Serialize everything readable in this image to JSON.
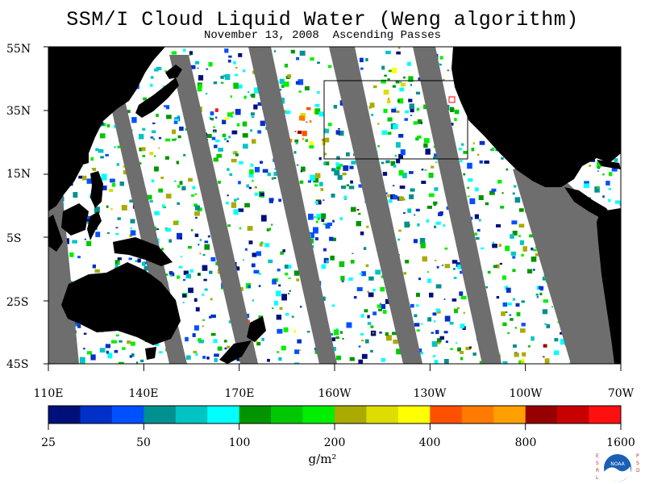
{
  "title": "SSM/I Cloud Liquid Water (Weng algorithm)",
  "subtitle": "November 13, 2008  Ascending Passes",
  "lat_labels": [
    "55N",
    "35N",
    "15N",
    "5S",
    "25S",
    "45S"
  ],
  "lon_labels": [
    "110E",
    "140E",
    "170E",
    "160W",
    "130W",
    "100W",
    "70W"
  ],
  "colorbar": {
    "labels": [
      "25",
      "50",
      "100",
      "200",
      "400",
      "800",
      "1600"
    ],
    "units": "g/m²",
    "colors": [
      "#00107a",
      "#0030c8",
      "#0050ff",
      "#009090",
      "#00c4c4",
      "#00ffff",
      "#009400",
      "#00c800",
      "#00ee00",
      "#aaaa00",
      "#dddd00",
      "#ffff00",
      "#ff5000",
      "#ff7a00",
      "#ffa000",
      "#960000",
      "#c80000",
      "#ff1010"
    ]
  },
  "logo": {
    "letters_left": "ESRL",
    "letters_right": "PSD",
    "agency": "NOAA"
  },
  "colors": {
    "land": "#000000",
    "no_data": "#6e6e6e",
    "clear": "#ffffff",
    "box": "#000000"
  }
}
